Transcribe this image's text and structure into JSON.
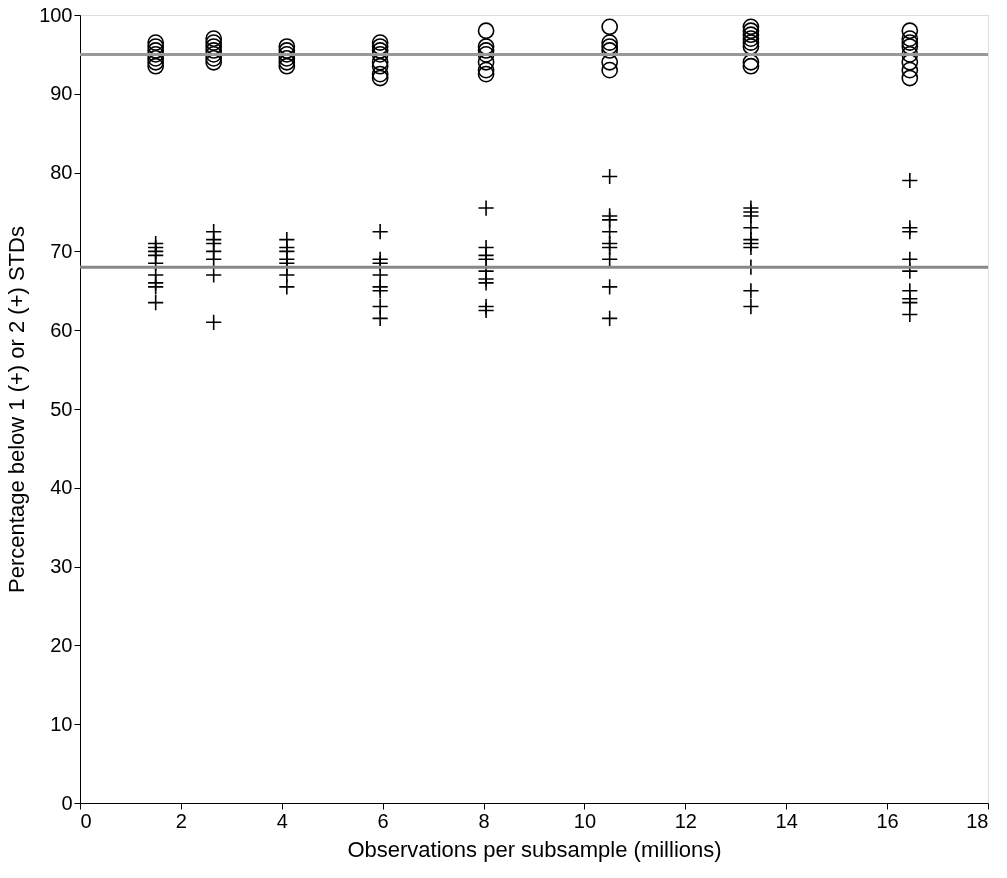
{
  "chart_data": {
    "type": "scatter",
    "xlabel": "Observations per subsample (millions)",
    "ylabel": "Percentage below 1 (+) or 2 (+) STDs",
    "xlim": [
      0,
      18
    ],
    "xticks": [
      0,
      2,
      4,
      6,
      8,
      10,
      12,
      14,
      16,
      18
    ],
    "ylim": [
      0,
      100
    ],
    "yticks": [
      0,
      10,
      20,
      30,
      40,
      50,
      60,
      70,
      80,
      90,
      100
    ],
    "grid": false,
    "ref_lines": [
      {
        "axis": "y",
        "value": 95,
        "color": "#999999"
      },
      {
        "axis": "y",
        "value": 68,
        "color": "#888888"
      }
    ],
    "series": [
      {
        "color": "#000000",
        "marker": "circle",
        "x": [
          1.5,
          1.5,
          1.5,
          1.5,
          1.5,
          1.5,
          1.5,
          2.65,
          2.65,
          2.65,
          2.65,
          2.65,
          2.65,
          2.65,
          4.1,
          4.1,
          4.1,
          4.1,
          4.1,
          4.1,
          5.95,
          5.95,
          5.95,
          5.95,
          5.95,
          5.95,
          5.95,
          5.95,
          8.05,
          8.05,
          8.05,
          8.05,
          8.05,
          8.05,
          8.05,
          10.5,
          10.5,
          10.5,
          10.5,
          10.5,
          10.5,
          13.3,
          13.3,
          13.3,
          13.3,
          13.3,
          13.3,
          13.3,
          13.3,
          16.45,
          16.45,
          16.45,
          16.45,
          16.45,
          16.45,
          16.45,
          16.45
        ],
        "values": [
          96.5,
          96,
          95.5,
          95,
          94.5,
          94,
          93.5,
          97,
          96.5,
          96,
          95.5,
          95,
          94.5,
          94,
          96,
          95.5,
          95,
          94.5,
          94,
          93.5,
          96.5,
          96,
          95.5,
          95,
          94,
          93.5,
          92.5,
          92,
          98,
          96,
          95.5,
          95,
          94,
          93,
          92.5,
          98.5,
          96.5,
          96,
          95.5,
          94,
          93,
          98.5,
          98,
          97.5,
          97,
          96.5,
          96,
          94,
          93.5,
          98,
          97,
          96.5,
          96,
          95,
          94,
          93,
          92
        ]
      },
      {
        "color": "#000000",
        "marker": "cross",
        "x": [
          1.5,
          1.5,
          1.5,
          1.5,
          1.5,
          1.5,
          1.5,
          1.5,
          1.5,
          2.65,
          2.65,
          2.65,
          2.65,
          2.65,
          2.65,
          2.65,
          4.1,
          4.1,
          4.1,
          4.1,
          4.1,
          4.1,
          4.1,
          4.1,
          5.95,
          5.95,
          5.95,
          5.95,
          5.95,
          5.95,
          5.95,
          5.95,
          8.05,
          8.05,
          8.05,
          8.05,
          8.05,
          8.05,
          8.05,
          8.05,
          8.05,
          10.5,
          10.5,
          10.5,
          10.5,
          10.5,
          10.5,
          10.5,
          10.5,
          10.5,
          13.3,
          13.3,
          13.3,
          13.3,
          13.3,
          13.3,
          13.3,
          13.3,
          13.3,
          13.3,
          16.45,
          16.45,
          16.45,
          16.45,
          16.45,
          16.45,
          16.45,
          16.45,
          16.45
        ],
        "values": [
          71,
          70.5,
          70,
          69.5,
          68.5,
          67,
          66,
          65.5,
          63.5,
          72.5,
          71.5,
          71,
          70,
          69,
          67,
          61,
          71.5,
          70.5,
          70,
          69,
          68.5,
          68,
          67,
          65.5,
          72.5,
          69,
          68.5,
          67,
          65.5,
          65,
          63,
          61.5,
          75.5,
          70.5,
          69.5,
          69,
          67.5,
          66.5,
          66,
          63,
          62.5,
          79.5,
          74.5,
          74,
          72.5,
          71,
          70.5,
          69,
          65.5,
          61.5,
          75.5,
          75,
          74.5,
          73,
          71.5,
          71,
          70.5,
          68,
          65,
          63,
          79,
          73,
          72.5,
          69,
          67.5,
          65,
          64,
          63.5,
          62
        ]
      }
    ]
  }
}
